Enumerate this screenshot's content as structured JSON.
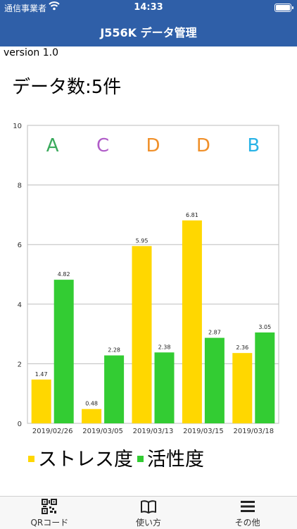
{
  "status_bar": {
    "carrier": "通信事業者",
    "time": "14:33"
  },
  "nav": {
    "title": "J556K データ管理"
  },
  "version": "version 1.0",
  "data_count": "データ数:5件",
  "chart_data": {
    "type": "bar",
    "categories": [
      "2019/02/26",
      "2019/03/05",
      "2019/03/13",
      "2019/03/15",
      "2019/03/18"
    ],
    "series": [
      {
        "name": "ストレス度",
        "color": "#ffd700",
        "values": [
          1.47,
          0.48,
          5.95,
          6.81,
          2.36
        ]
      },
      {
        "name": "活性度",
        "color": "#33cc33",
        "values": [
          4.82,
          2.28,
          2.38,
          2.87,
          3.05
        ]
      }
    ],
    "grades": [
      {
        "label": "A",
        "color": "#3aaa5c"
      },
      {
        "label": "C",
        "color": "#b05cc8"
      },
      {
        "label": "D",
        "color": "#f0902a"
      },
      {
        "label": "D",
        "color": "#f0902a"
      },
      {
        "label": "B",
        "color": "#29b3e6"
      }
    ],
    "yticks": [
      "0",
      "2",
      "4",
      "6",
      "8",
      "10"
    ],
    "ylim": [
      0,
      10
    ],
    "grid": true,
    "legend": "bottom-left"
  },
  "tabs": [
    {
      "label": "QRコード",
      "icon": "qr-code-icon"
    },
    {
      "label": "使い方",
      "icon": "book-icon"
    },
    {
      "label": "その他",
      "icon": "menu-icon"
    }
  ]
}
